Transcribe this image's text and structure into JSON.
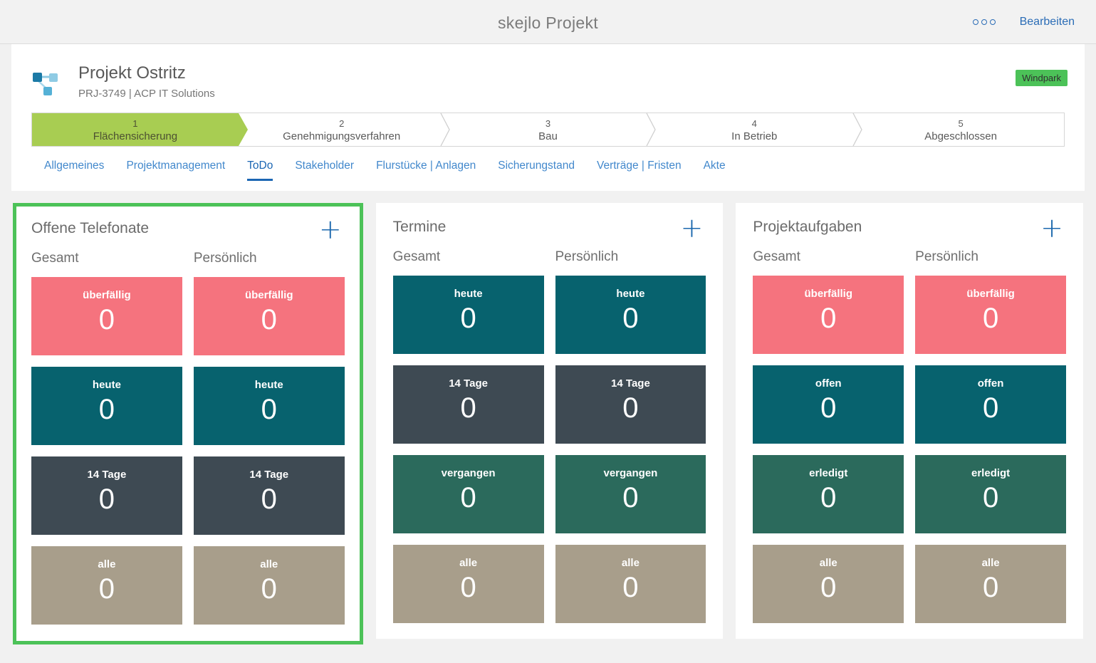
{
  "topbar": {
    "title": "skejlo Projekt",
    "edit_label": "Bearbeiten"
  },
  "icons": {
    "add_glyph": "+"
  },
  "project": {
    "title": "Projekt Ostritz",
    "subtitle": "PRJ-3749 | ACP IT Solutions",
    "badge": "Windpark",
    "stages": [
      {
        "number": "1",
        "label": "Flächensicherung",
        "active": true
      },
      {
        "number": "2",
        "label": "Genehmigungsverfahren",
        "active": false
      },
      {
        "number": "3",
        "label": "Bau",
        "active": false
      },
      {
        "number": "4",
        "label": "In Betrieb",
        "active": false
      },
      {
        "number": "5",
        "label": "Abgeschlossen",
        "active": false
      }
    ]
  },
  "tabs": [
    {
      "label": "Allgemeines",
      "active": false
    },
    {
      "label": "Projektmanagement",
      "active": false
    },
    {
      "label": "ToDo",
      "active": true
    },
    {
      "label": "Stakeholder",
      "active": false
    },
    {
      "label": "Flurstücke | Anlagen",
      "active": false
    },
    {
      "label": "Sicherungstand",
      "active": false
    },
    {
      "label": "Verträge | Fristen",
      "active": false
    },
    {
      "label": "Akte",
      "active": false
    }
  ],
  "cards": [
    {
      "title": "Offene Telefonate",
      "highlighted": true,
      "columns": [
        "Gesamt",
        "Persönlich"
      ],
      "rows": [
        {
          "label": "überfällig",
          "color": "#f5737e",
          "values": [
            "0",
            "0"
          ]
        },
        {
          "label": "heute",
          "color": "#07626e",
          "values": [
            "0",
            "0"
          ]
        },
        {
          "label": "14 Tage",
          "color": "#3e4a53",
          "values": [
            "0",
            "0"
          ]
        },
        {
          "label": "alle",
          "color": "#a89e8b",
          "values": [
            "0",
            "0"
          ]
        }
      ]
    },
    {
      "title": "Termine",
      "highlighted": false,
      "columns": [
        "Gesamt",
        "Persönlich"
      ],
      "rows": [
        {
          "label": "heute",
          "color": "#07626e",
          "values": [
            "0",
            "0"
          ]
        },
        {
          "label": "14 Tage",
          "color": "#3e4a53",
          "values": [
            "0",
            "0"
          ]
        },
        {
          "label": "vergangen",
          "color": "#2b6a5c",
          "values": [
            "0",
            "0"
          ]
        },
        {
          "label": "alle",
          "color": "#a89e8b",
          "values": [
            "0",
            "0"
          ]
        }
      ]
    },
    {
      "title": "Projektaufgaben",
      "highlighted": false,
      "columns": [
        "Gesamt",
        "Persönlich"
      ],
      "rows": [
        {
          "label": "überfällig",
          "color": "#f5737e",
          "values": [
            "0",
            "0"
          ]
        },
        {
          "label": "offen",
          "color": "#07626e",
          "values": [
            "0",
            "0"
          ]
        },
        {
          "label": "erledigt",
          "color": "#2b6a5c",
          "values": [
            "0",
            "0"
          ]
        },
        {
          "label": "alle",
          "color": "#a89e8b",
          "values": [
            "0",
            "0"
          ]
        }
      ]
    }
  ],
  "colors": {
    "highlight_border": "#4cc258",
    "badge_green": "#4cc258",
    "stage_active_green": "#a8cd52",
    "link_blue": "#2a6cb6",
    "tab_active_blue": "#1b66b3",
    "tile_red": "#f5737e",
    "tile_teal": "#07626e",
    "tile_slate": "#3e4a53",
    "tile_green": "#2b6a5c",
    "tile_taupe": "#a89e8b"
  }
}
